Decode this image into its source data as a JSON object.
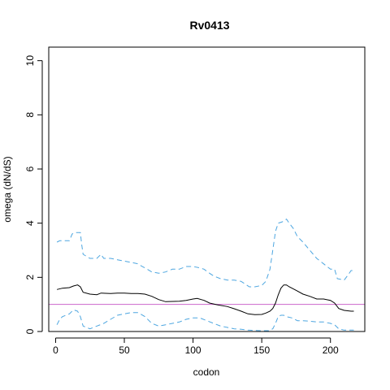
{
  "chart_data": {
    "type": "line",
    "title": "Rv0413",
    "xlabel": "codon",
    "ylabel": "omega (dN/dS)",
    "xlim": [
      -5,
      225
    ],
    "ylim": [
      0,
      10.5
    ],
    "x_ticks": [
      0,
      50,
      100,
      150,
      200
    ],
    "y_ticks": [
      0,
      2,
      4,
      6,
      8,
      10
    ],
    "x_tick_labels": [
      "0",
      "50",
      "100",
      "150",
      "200"
    ],
    "y_tick_labels": [
      "0",
      "2",
      "4",
      "6",
      "8",
      "10"
    ],
    "grid": false,
    "reference_line": {
      "y": 1,
      "color": "#cc66cc"
    },
    "series": [
      {
        "role": "estimate",
        "color": "#000000",
        "dash": "solid",
        "x": [
          1,
          5,
          10,
          13,
          16,
          18,
          20,
          25,
          30,
          33,
          40,
          45,
          50,
          55,
          60,
          65,
          70,
          75,
          80,
          90,
          95,
          100,
          103,
          108,
          112,
          118,
          125,
          130,
          135,
          140,
          145,
          150,
          153,
          156,
          158,
          160,
          162,
          164,
          166,
          168,
          170,
          175,
          180,
          185,
          190,
          195,
          200,
          203,
          206,
          210,
          215,
          217
        ],
        "values": [
          1.55,
          1.6,
          1.62,
          1.68,
          1.72,
          1.65,
          1.45,
          1.38,
          1.36,
          1.42,
          1.4,
          1.42,
          1.42,
          1.4,
          1.4,
          1.38,
          1.3,
          1.18,
          1.1,
          1.12,
          1.15,
          1.2,
          1.22,
          1.15,
          1.05,
          0.98,
          0.92,
          0.84,
          0.75,
          0.65,
          0.62,
          0.63,
          0.68,
          0.75,
          0.85,
          1.05,
          1.35,
          1.6,
          1.72,
          1.72,
          1.65,
          1.52,
          1.38,
          1.3,
          1.2,
          1.2,
          1.15,
          1.05,
          0.85,
          0.78,
          0.75,
          0.75
        ]
      },
      {
        "role": "upper",
        "color": "#4da6e0",
        "dash": "dashed",
        "x": [
          1,
          3,
          5,
          10,
          12,
          14,
          18,
          19,
          20,
          25,
          30,
          33,
          35,
          40,
          45,
          50,
          55,
          60,
          63,
          65,
          70,
          75,
          80,
          85,
          90,
          95,
          100,
          105,
          108,
          112,
          115,
          120,
          125,
          130,
          135,
          138,
          141,
          145,
          150,
          153,
          156,
          158,
          160,
          162,
          165,
          168,
          170,
          173,
          176,
          180,
          185,
          190,
          195,
          200,
          203,
          205,
          210,
          213,
          215,
          217
        ],
        "values": [
          3.3,
          3.35,
          3.35,
          3.35,
          3.6,
          3.65,
          3.65,
          3.2,
          2.85,
          2.7,
          2.7,
          2.85,
          2.7,
          2.7,
          2.65,
          2.6,
          2.55,
          2.5,
          2.4,
          2.35,
          2.2,
          2.15,
          2.2,
          2.3,
          2.3,
          2.4,
          2.4,
          2.35,
          2.3,
          2.15,
          2.05,
          1.95,
          1.9,
          1.9,
          1.85,
          1.75,
          1.65,
          1.65,
          1.7,
          1.85,
          2.3,
          3.0,
          3.7,
          4.0,
          4.05,
          4.15,
          4.0,
          3.8,
          3.5,
          3.3,
          3.0,
          2.7,
          2.5,
          2.3,
          2.3,
          1.95,
          1.9,
          2.1,
          2.25,
          2.25
        ]
      },
      {
        "role": "lower",
        "color": "#4da6e0",
        "dash": "dashed",
        "x": [
          1,
          3,
          5,
          10,
          13,
          16,
          18,
          20,
          25,
          30,
          35,
          40,
          45,
          50,
          55,
          60,
          65,
          70,
          75,
          80,
          85,
          90,
          95,
          100,
          105,
          110,
          115,
          120,
          125,
          130,
          135,
          140,
          145,
          150,
          155,
          158,
          160,
          162,
          164,
          166,
          168,
          172,
          176,
          180,
          185,
          190,
          195,
          200,
          203,
          206,
          210,
          215,
          217
        ],
        "values": [
          0.25,
          0.45,
          0.55,
          0.65,
          0.8,
          0.75,
          0.55,
          0.2,
          0.1,
          0.2,
          0.3,
          0.45,
          0.6,
          0.65,
          0.7,
          0.7,
          0.55,
          0.3,
          0.2,
          0.25,
          0.3,
          0.35,
          0.45,
          0.5,
          0.5,
          0.4,
          0.3,
          0.2,
          0.15,
          0.1,
          0.08,
          0.05,
          0.04,
          0.03,
          0.03,
          0.1,
          0.3,
          0.55,
          0.6,
          0.6,
          0.55,
          0.5,
          0.4,
          0.4,
          0.38,
          0.35,
          0.35,
          0.3,
          0.25,
          0.1,
          0.05,
          0.05,
          0.05
        ]
      }
    ]
  }
}
